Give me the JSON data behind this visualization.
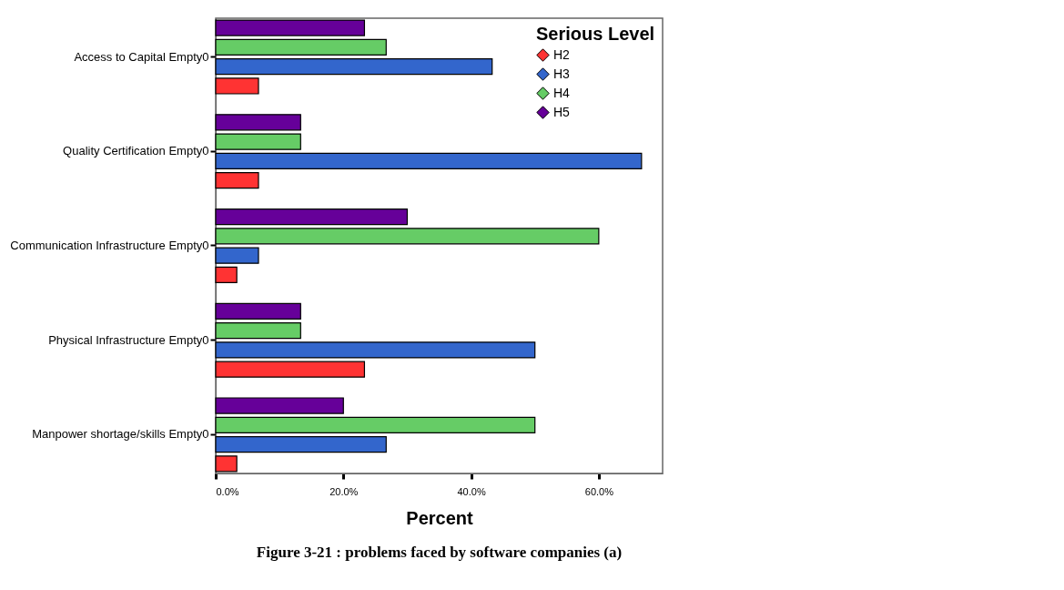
{
  "chart_data": {
    "type": "bar",
    "orientation": "horizontal",
    "title": "Figure 3-21 : problems faced by software companies (a)",
    "xlabel": "Percent",
    "legend_title": "Serious Level",
    "legend": "top right",
    "grid": false,
    "marker": "diamond",
    "categories": [
      "Access to Capital Empty0",
      "Quality Certification Empty0",
      "Communication Infrastructure Empty0",
      "Physical Infrastructure Empty0",
      "Manpower shortage/skills Empty0"
    ],
    "xlim": [
      0,
      70
    ],
    "xticks": [
      {
        "value": 0,
        "label": "0.0%"
      },
      {
        "value": 20,
        "label": "20.0%"
      },
      {
        "value": 40,
        "label": "40.0%"
      },
      {
        "value": 60,
        "label": "60.0%"
      }
    ],
    "series": [
      {
        "name": "H2",
        "color": "#ff3333",
        "values": [
          6.7,
          6.7,
          3.3,
          23.3,
          3.3
        ]
      },
      {
        "name": "H3",
        "color": "#3366cc",
        "values": [
          43.3,
          66.7,
          6.7,
          50,
          26.7
        ]
      },
      {
        "name": "H4",
        "color": "#66cc66",
        "values": [
          26.7,
          13.3,
          60,
          13.3,
          50
        ]
      },
      {
        "name": "H5",
        "color": "#660099",
        "values": [
          23.3,
          13.3,
          30,
          13.3,
          20
        ]
      }
    ]
  }
}
